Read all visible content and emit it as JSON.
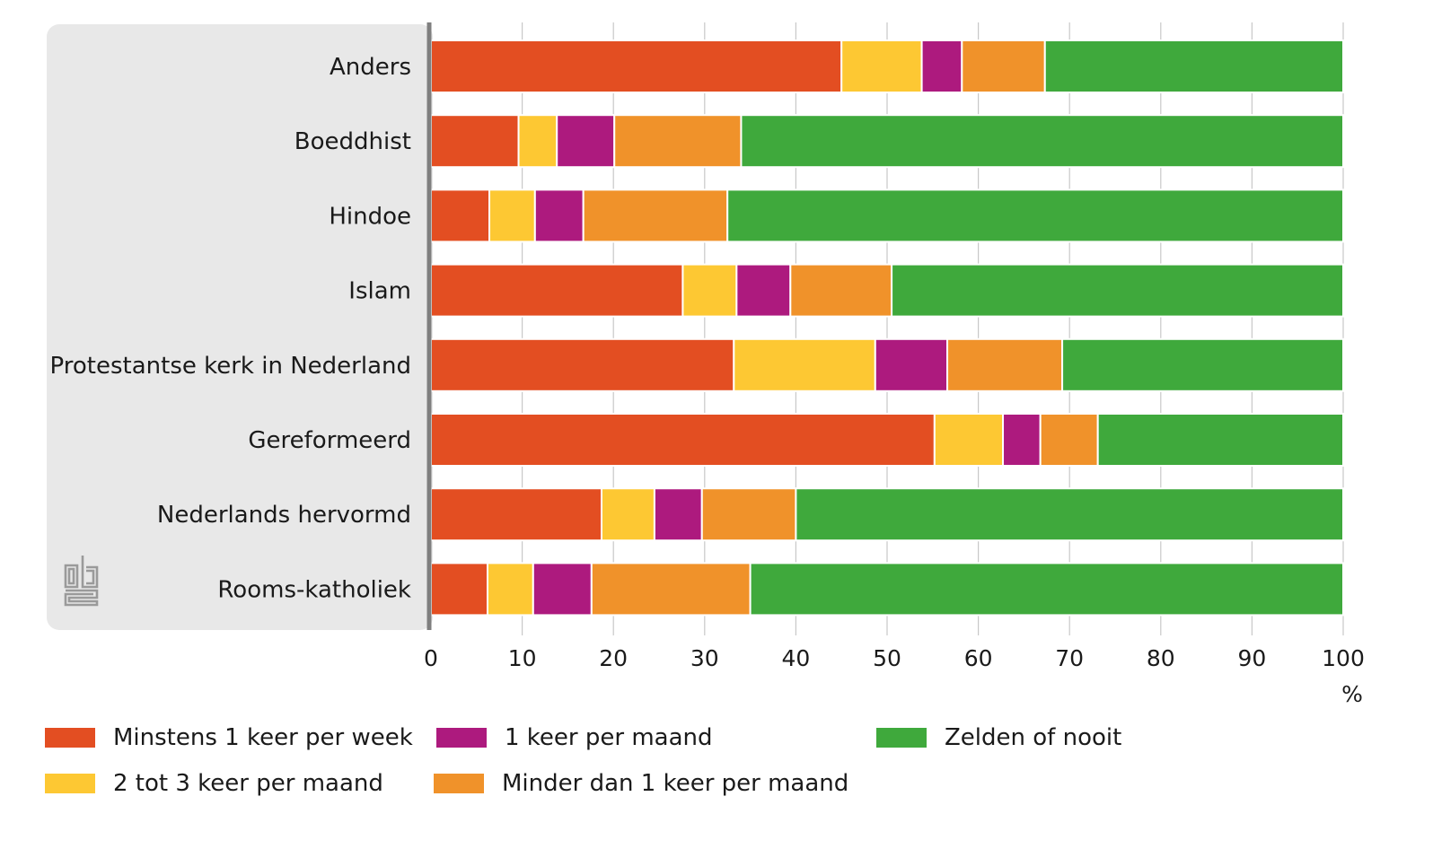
{
  "chart_data": {
    "type": "bar",
    "orientation": "horizontal",
    "stacked": true,
    "categories": [
      "Anders",
      "Boeddhist",
      "Hindoe",
      "Islam",
      "Protestantse kerk in Nederland",
      "Gereformeerd",
      "Nederlands hervormd",
      "Rooms-katholiek"
    ],
    "series": [
      {
        "name": "Minstens 1 keer per week",
        "color": "#e34e22",
        "values": [
          45,
          9.6,
          6.4,
          27.6,
          33.2,
          55.2,
          18.7,
          6.2
        ]
      },
      {
        "name": "2 tot 3 keer per maand",
        "color": "#fdc833",
        "values": [
          8.8,
          4.2,
          5,
          5.9,
          15.5,
          7.5,
          5.8,
          5
        ]
      },
      {
        "name": "1 keer per maand",
        "color": "#ad1a7e",
        "values": [
          4.4,
          6.3,
          5.3,
          5.9,
          7.9,
          4.1,
          5.2,
          6.4
        ]
      },
      {
        "name": "Minder dan 1 keer per maand",
        "color": "#f0922a",
        "values": [
          9.1,
          13.9,
          15.8,
          11.1,
          12.6,
          6.3,
          10.3,
          17.4
        ]
      },
      {
        "name": "Zelden of nooit",
        "color": "#3fa93c",
        "values": [
          32.7,
          66,
          67.5,
          49.5,
          30.8,
          26.9,
          60,
          65
        ]
      }
    ],
    "xlim": [
      0,
      100
    ],
    "x_ticks": [
      0,
      10,
      20,
      30,
      40,
      50,
      60,
      70,
      80,
      90,
      100
    ],
    "x_unit": "%",
    "grid": true,
    "legend_position": "bottom"
  },
  "logo": {
    "name": "cbs-logo",
    "text": "cbs",
    "color": "#9a9a9a"
  },
  "colors": {
    "panel": "#e8e8e8",
    "axis": "#7f7f7f",
    "grid": "#c8c8c8"
  }
}
